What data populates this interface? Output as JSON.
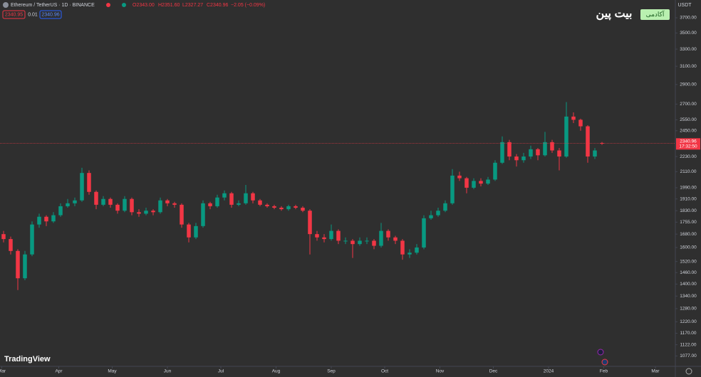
{
  "chart_data": {
    "type": "candlestick",
    "header": {
      "symbol": "Ethereum / TetherUS · 1D · BINANCE",
      "open": "O2343.00",
      "high": "H2351.60",
      "low": "L2327.27",
      "close": "C2340.96",
      "change": "−2.05 (−0.09%)",
      "bid": "2340.95",
      "spread": "0.01",
      "ask": "2340.96"
    },
    "currency": "USDT",
    "countdown": "17:32:50",
    "brand": "TradingView",
    "academy": "آکادمی",
    "site": "بیت پین",
    "up_color": "#089981",
    "down_color": "#f23645",
    "log_scale": true,
    "last_price": 2340.96,
    "xlim": [
      -0.5,
      94.3
    ],
    "xticks": [
      {
        "value": -0.25,
        "label": "Mar"
      },
      {
        "value": 7.75,
        "label": "Apr"
      },
      {
        "value": 15.25,
        "label": "May"
      },
      {
        "value": 23,
        "label": "Jun"
      },
      {
        "value": 30.5,
        "label": "Jul"
      },
      {
        "value": 38.25,
        "label": "Aug"
      },
      {
        "value": 46,
        "label": "Sep"
      },
      {
        "value": 53.5,
        "label": "Oct"
      },
      {
        "value": 61.25,
        "label": "Nov"
      },
      {
        "value": 68.75,
        "label": "Dec"
      },
      {
        "value": 76.5,
        "label": "2024"
      },
      {
        "value": 84.25,
        "label": "Feb"
      },
      {
        "value": 91.5,
        "label": "Mar"
      }
    ],
    "ylim": [
      1037,
      3948
    ],
    "yticks": [
      {
        "value": 1077,
        "label": "1077.00"
      },
      {
        "value": 1122,
        "label": "1122.00"
      },
      {
        "value": 1170,
        "label": "1170.00"
      },
      {
        "value": 1220,
        "label": "1220.00"
      },
      {
        "value": 1280,
        "label": "1280.00"
      },
      {
        "value": 1340,
        "label": "1340.00"
      },
      {
        "value": 1400,
        "label": "1400.00"
      },
      {
        "value": 1460,
        "label": "1460.00"
      },
      {
        "value": 1520,
        "label": "1520.00"
      },
      {
        "value": 1600,
        "label": "1600.00"
      },
      {
        "value": 1680,
        "label": "1680.00"
      },
      {
        "value": 1755,
        "label": "1755.00"
      },
      {
        "value": 1830,
        "label": "1830.00"
      },
      {
        "value": 1910,
        "label": "1910.00"
      },
      {
        "value": 1990,
        "label": "1990.00"
      },
      {
        "value": 2110,
        "label": "2110.00"
      },
      {
        "value": 2230,
        "label": "2230.00"
      },
      {
        "value": 2450,
        "label": "2450.00"
      },
      {
        "value": 2550,
        "label": "2550.00"
      },
      {
        "value": 2700,
        "label": "2700.00"
      },
      {
        "value": 2900,
        "label": "2900.00"
      },
      {
        "value": 3100,
        "label": "3100.00"
      },
      {
        "value": 3300,
        "label": "3300.00"
      },
      {
        "value": 3500,
        "label": "3500.00"
      },
      {
        "value": 3700,
        "label": "3700.00"
      }
    ],
    "ohlc": [
      [
        1680,
        1700,
        1630,
        1650
      ],
      [
        1650,
        1665,
        1560,
        1580
      ],
      [
        1580,
        1590,
        1370,
        1430
      ],
      [
        1430,
        1580,
        1420,
        1560
      ],
      [
        1560,
        1760,
        1550,
        1740
      ],
      [
        1740,
        1810,
        1720,
        1790
      ],
      [
        1790,
        1800,
        1730,
        1760
      ],
      [
        1760,
        1820,
        1750,
        1800
      ],
      [
        1800,
        1880,
        1790,
        1860
      ],
      [
        1860,
        1910,
        1850,
        1880
      ],
      [
        1880,
        1920,
        1860,
        1900
      ],
      [
        1900,
        2140,
        1890,
        2100
      ],
      [
        2100,
        2120,
        1940,
        1960
      ],
      [
        1960,
        1970,
        1840,
        1870
      ],
      [
        1870,
        1930,
        1860,
        1910
      ],
      [
        1910,
        1920,
        1850,
        1870
      ],
      [
        1870,
        1880,
        1810,
        1830
      ],
      [
        1830,
        1930,
        1820,
        1910
      ],
      [
        1910,
        1920,
        1800,
        1820
      ],
      [
        1820,
        1840,
        1790,
        1810
      ],
      [
        1810,
        1850,
        1800,
        1830
      ],
      [
        1830,
        1840,
        1800,
        1820
      ],
      [
        1820,
        1920,
        1810,
        1900
      ],
      [
        1900,
        1910,
        1860,
        1880
      ],
      [
        1880,
        1890,
        1850,
        1870
      ],
      [
        1870,
        1880,
        1720,
        1740
      ],
      [
        1740,
        1750,
        1630,
        1660
      ],
      [
        1660,
        1750,
        1650,
        1730
      ],
      [
        1730,
        1900,
        1720,
        1880
      ],
      [
        1880,
        1890,
        1840,
        1860
      ],
      [
        1860,
        1940,
        1850,
        1920
      ],
      [
        1920,
        1970,
        1900,
        1950
      ],
      [
        1950,
        1960,
        1850,
        1870
      ],
      [
        1870,
        1900,
        1860,
        1880
      ],
      [
        1880,
        2010,
        1870,
        1950
      ],
      [
        1950,
        1960,
        1880,
        1900
      ],
      [
        1900,
        1910,
        1860,
        1870
      ],
      [
        1870,
        1880,
        1850,
        1860
      ],
      [
        1860,
        1870,
        1840,
        1850
      ],
      [
        1850,
        1860,
        1830,
        1840
      ],
      [
        1840,
        1870,
        1830,
        1860
      ],
      [
        1860,
        1870,
        1840,
        1850
      ],
      [
        1850,
        1860,
        1820,
        1830
      ],
      [
        1830,
        1840,
        1560,
        1680
      ],
      [
        1680,
        1700,
        1640,
        1660
      ],
      [
        1660,
        1680,
        1630,
        1650
      ],
      [
        1650,
        1740,
        1640,
        1700
      ],
      [
        1700,
        1710,
        1620,
        1640
      ],
      [
        1640,
        1660,
        1620,
        1640
      ],
      [
        1640,
        1650,
        1540,
        1620
      ],
      [
        1620,
        1660,
        1610,
        1640
      ],
      [
        1640,
        1660,
        1620,
        1640
      ],
      [
        1640,
        1650,
        1590,
        1610
      ],
      [
        1610,
        1750,
        1600,
        1700
      ],
      [
        1700,
        1710,
        1640,
        1660
      ],
      [
        1660,
        1670,
        1620,
        1640
      ],
      [
        1640,
        1650,
        1530,
        1560
      ],
      [
        1560,
        1590,
        1540,
        1570
      ],
      [
        1570,
        1620,
        1560,
        1600
      ],
      [
        1600,
        1800,
        1590,
        1780
      ],
      [
        1780,
        1830,
        1770,
        1800
      ],
      [
        1800,
        1850,
        1790,
        1830
      ],
      [
        1830,
        1900,
        1820,
        1880
      ],
      [
        1880,
        2130,
        1870,
        2080
      ],
      [
        2080,
        2110,
        2040,
        2060
      ],
      [
        2060,
        2070,
        1950,
        1990
      ],
      [
        1990,
        2060,
        1980,
        2040
      ],
      [
        2040,
        2060,
        2000,
        2020
      ],
      [
        2020,
        2070,
        2010,
        2050
      ],
      [
        2050,
        2200,
        2040,
        2180
      ],
      [
        2180,
        2400,
        2170,
        2350
      ],
      [
        2350,
        2370,
        2200,
        2230
      ],
      [
        2230,
        2250,
        2150,
        2200
      ],
      [
        2200,
        2260,
        2180,
        2230
      ],
      [
        2230,
        2320,
        2210,
        2290
      ],
      [
        2290,
        2300,
        2200,
        2240
      ],
      [
        2240,
        2440,
        2230,
        2350
      ],
      [
        2350,
        2370,
        2260,
        2280
      ],
      [
        2280,
        2300,
        2120,
        2230
      ],
      [
        2230,
        2720,
        2220,
        2580
      ],
      [
        2580,
        2620,
        2520,
        2550
      ],
      [
        2550,
        2560,
        2450,
        2490
      ],
      [
        2490,
        2500,
        2180,
        2230
      ],
      [
        2230,
        2300,
        2210,
        2280
      ],
      [
        2343,
        2351.6,
        2327.27,
        2340.96
      ]
    ]
  }
}
